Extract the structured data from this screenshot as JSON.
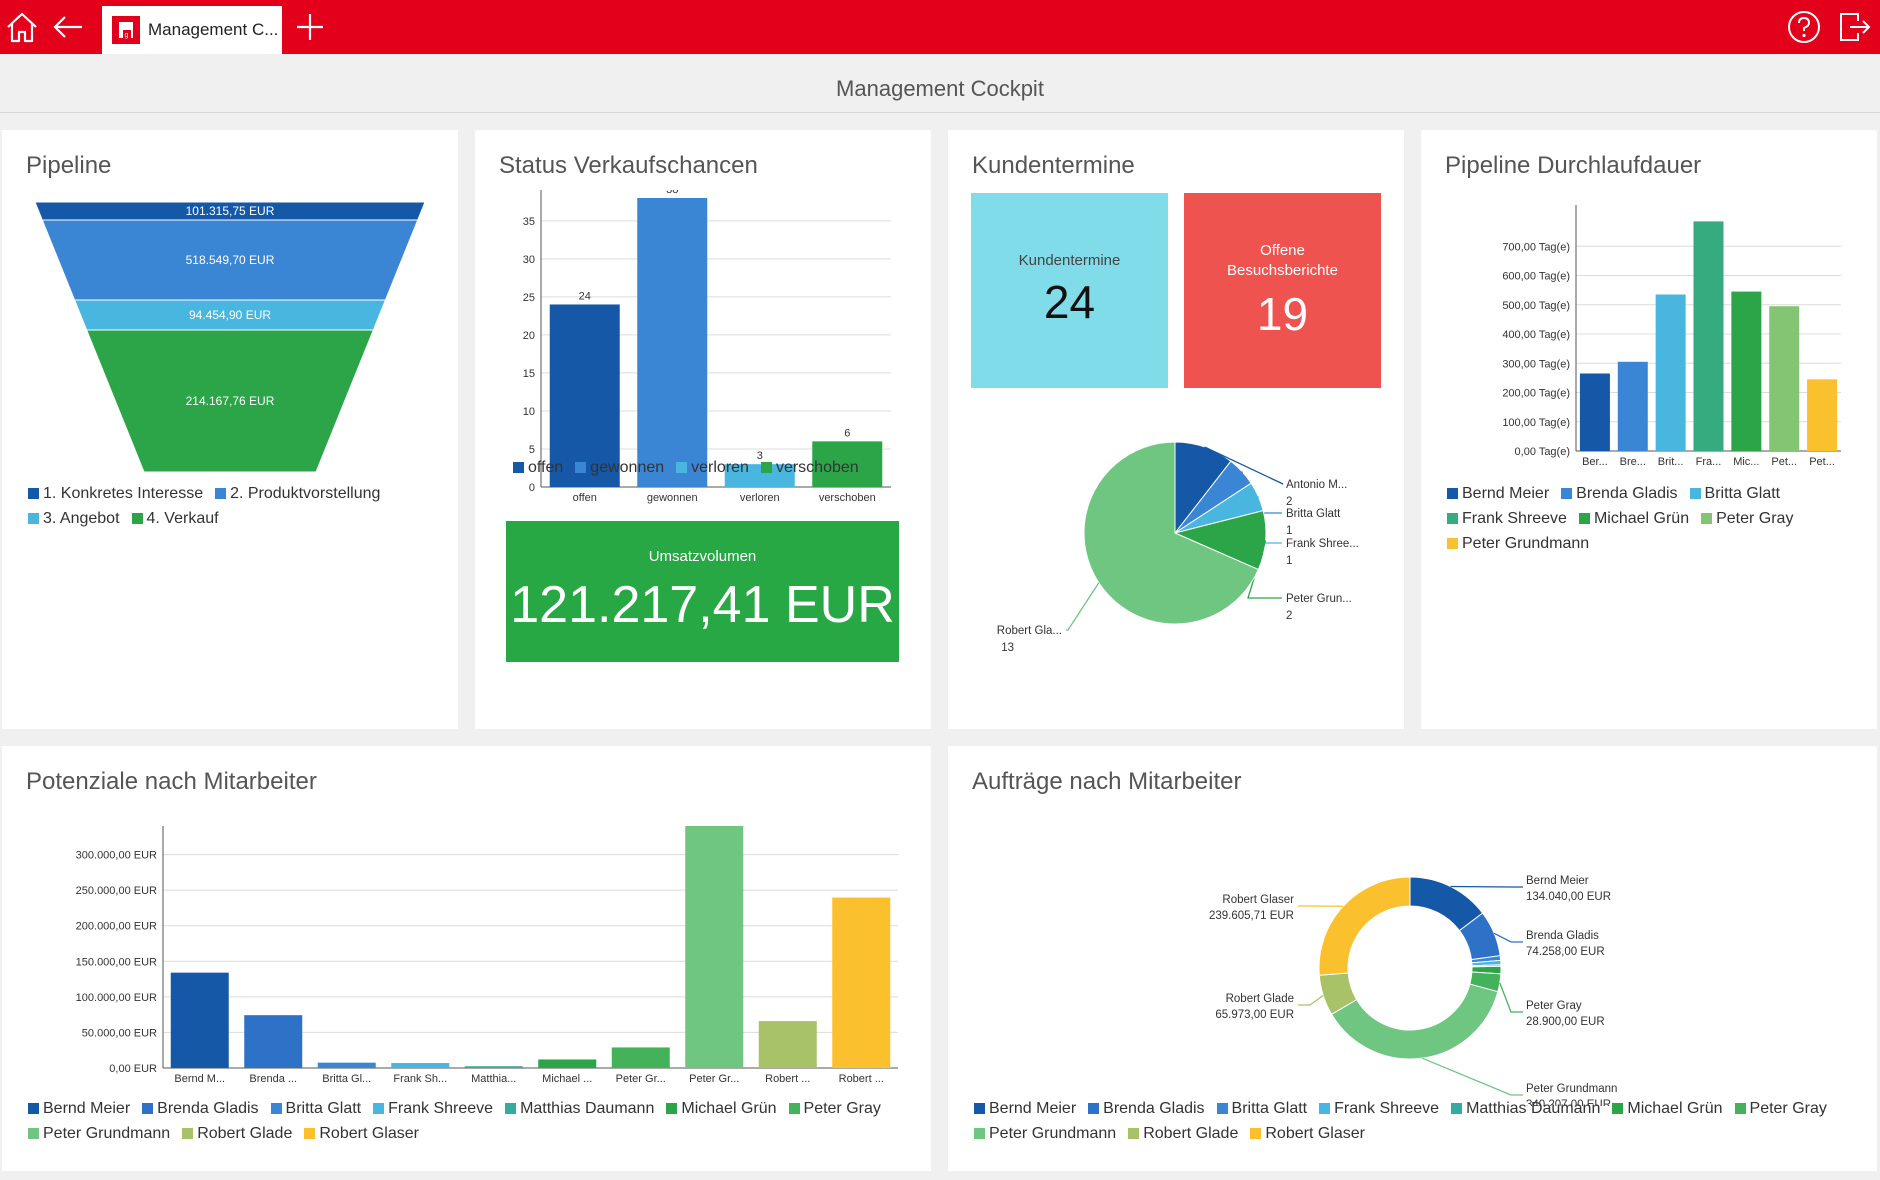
{
  "topbar": {
    "tab_label": "Management C...",
    "home_icon": "home-icon",
    "back_icon": "back-arrow-icon",
    "add_icon": "plus-icon",
    "help_icon": "help-icon",
    "logout_icon": "logout-icon"
  },
  "page_title": "Management Cockpit",
  "colors": {
    "brand": "#e2001a",
    "kundentermine_tile": "#80dce8",
    "besuchsberichte_tile": "#ef5350",
    "umsatz_tile": "#28a745"
  },
  "pipeline": {
    "title": "Pipeline",
    "chart_data": {
      "type": "funnel",
      "stages": [
        {
          "name": "1. Konkretes Interesse",
          "label": "101.315,75 EUR",
          "value": 101315.75,
          "color": "#1558a7"
        },
        {
          "name": "2. Produktvorstellung",
          "label": "518.549,70 EUR",
          "value": 518549.7,
          "color": "#3a86d4"
        },
        {
          "name": "3. Angebot",
          "label": "94.454,90 EUR",
          "value": 94454.9,
          "color": "#49b6e0"
        },
        {
          "name": "4. Verkauf",
          "label": "214.167,76 EUR",
          "value": 214167.76,
          "color": "#2ba548"
        }
      ]
    }
  },
  "status": {
    "title": "Status Verkaufschancen",
    "chart_data": {
      "type": "bar",
      "categories": [
        "offen",
        "gewonnen",
        "verloren",
        "verschoben"
      ],
      "values": [
        24,
        38,
        3,
        6
      ],
      "colors": [
        "#1558a7",
        "#3a86d4",
        "#49b6e0",
        "#2ba548"
      ],
      "yticks": [
        "0",
        "5",
        "10",
        "15",
        "20",
        "25",
        "30",
        "35"
      ],
      "ylim": [
        0,
        38
      ]
    }
  },
  "umsatz": {
    "label": "Umsatzvolumen",
    "value": "121.217,41 EUR"
  },
  "kundentermine": {
    "title": "Kundentermine",
    "tile1_label": "Kundentermine",
    "tile1_value": "24",
    "tile2_label": "Offene Besuchsberichte",
    "tile2_value": "19",
    "chart_data": {
      "type": "pie",
      "slices": [
        {
          "name": "Antonio M...",
          "value": 2,
          "color": "#1558a7"
        },
        {
          "name": "Britta Glatt",
          "value": 1,
          "color": "#3a86d4"
        },
        {
          "name": "Frank Shree...",
          "value": 1,
          "color": "#49b6e0"
        },
        {
          "name": "Peter Grun...",
          "value": 2,
          "color": "#2ba548"
        },
        {
          "name": "Robert Gla...",
          "value": 13,
          "color": "#6fc680"
        }
      ]
    }
  },
  "durchlauf": {
    "title": "Pipeline Durchlaufdauer",
    "chart_data": {
      "type": "bar",
      "categories": [
        "Ber...",
        "Bre...",
        "Brit...",
        "Fra...",
        "Mic...",
        "Pet...",
        "Pet..."
      ],
      "values": [
        265,
        305,
        535,
        785,
        545,
        495,
        245
      ],
      "colors": [
        "#1558a7",
        "#3a86d4",
        "#49b6e0",
        "#35ab7f",
        "#2ba548",
        "#84c574",
        "#fbc02d"
      ],
      "yticks": [
        "0,00 Tag(e)",
        "100,00 Tag(e)",
        "200,00 Tag(e)",
        "300,00 Tag(e)",
        "400,00 Tag(e)",
        "500,00 Tag(e)",
        "600,00 Tag(e)",
        "700,00 Tag(e)"
      ],
      "ylim": [
        0,
        800
      ],
      "legend": [
        "Bernd Meier",
        "Brenda Gladis",
        "Britta Glatt",
        "Frank Shreeve",
        "Michael Grün",
        "Peter Gray",
        "Peter Grundmann"
      ]
    }
  },
  "potenziale": {
    "title": "Potenziale nach Mitarbeiter",
    "chart_data": {
      "type": "bar",
      "categories": [
        "Bernd M...",
        "Brenda ...",
        "Britta Gl...",
        "Frank Sh...",
        "Matthia...",
        "Michael ...",
        "Peter Gr...",
        "Peter Gr...",
        "Robert ...",
        "Robert ..."
      ],
      "values": [
        134040,
        74258,
        7500,
        7000,
        2500,
        12000,
        28900,
        340207,
        65973,
        239606
      ],
      "colors": [
        "#1558a7",
        "#2d72c6",
        "#3a86d4",
        "#49b6e0",
        "#35ab9f",
        "#2ba548",
        "#43b25a",
        "#6fc680",
        "#a8c267",
        "#fbc02d"
      ],
      "yticks": [
        "0,00 EUR",
        "50.000,00 EUR",
        "100.000,00 EUR",
        "150.000,00 EUR",
        "200.000,00 EUR",
        "250.000,00 EUR",
        "300.000,00 EUR"
      ],
      "ylim": [
        0,
        340207
      ],
      "legend": [
        "Bernd Meier",
        "Brenda Gladis",
        "Britta Glatt",
        "Frank Shreeve",
        "Matthias Daumann",
        "Michael Grün",
        "Peter Gray",
        "Peter Grundmann",
        "Robert Glade",
        "Robert Glaser"
      ]
    }
  },
  "auftraege": {
    "title": "Aufträge nach Mitarbeiter",
    "chart_data": {
      "type": "donut",
      "slices": [
        {
          "name": "Bernd Meier",
          "value": 134040,
          "color": "#1558a7"
        },
        {
          "name": "Brenda Gladis",
          "value": 74258,
          "color": "#2d72c6"
        },
        {
          "name": "Britta Glatt",
          "value": 7500,
          "color": "#3a86d4"
        },
        {
          "name": "Frank Shreeve",
          "value": 7000,
          "color": "#49b6e0"
        },
        {
          "name": "Matthias Daumann",
          "value": 2500,
          "color": "#35ab9f"
        },
        {
          "name": "Michael Grün",
          "value": 12000,
          "color": "#2ba548"
        },
        {
          "name": "Peter Gray",
          "value": 28900,
          "color": "#43b25a"
        },
        {
          "name": "Peter Grundmann",
          "value": 340207,
          "color": "#6fc680"
        },
        {
          "name": "Robert Glade",
          "value": 65973,
          "color": "#a8c267"
        },
        {
          "name": "Robert Glaser",
          "value": 239605.71,
          "color": "#fbc02d"
        }
      ],
      "callouts": [
        {
          "name": "Bernd Meier",
          "value": "134.040,00 EUR"
        },
        {
          "name": "Brenda Gladis",
          "value": "74.258,00 EUR"
        },
        {
          "name": "Peter Gray",
          "value": "28.900,00 EUR"
        },
        {
          "name": "Peter Grundmann",
          "value": "340.207,00 EUR"
        },
        {
          "name": "Robert Glade",
          "value": "65.973,00 EUR"
        },
        {
          "name": "Robert Glaser",
          "value": "239.605,71 EUR"
        }
      ]
    }
  }
}
